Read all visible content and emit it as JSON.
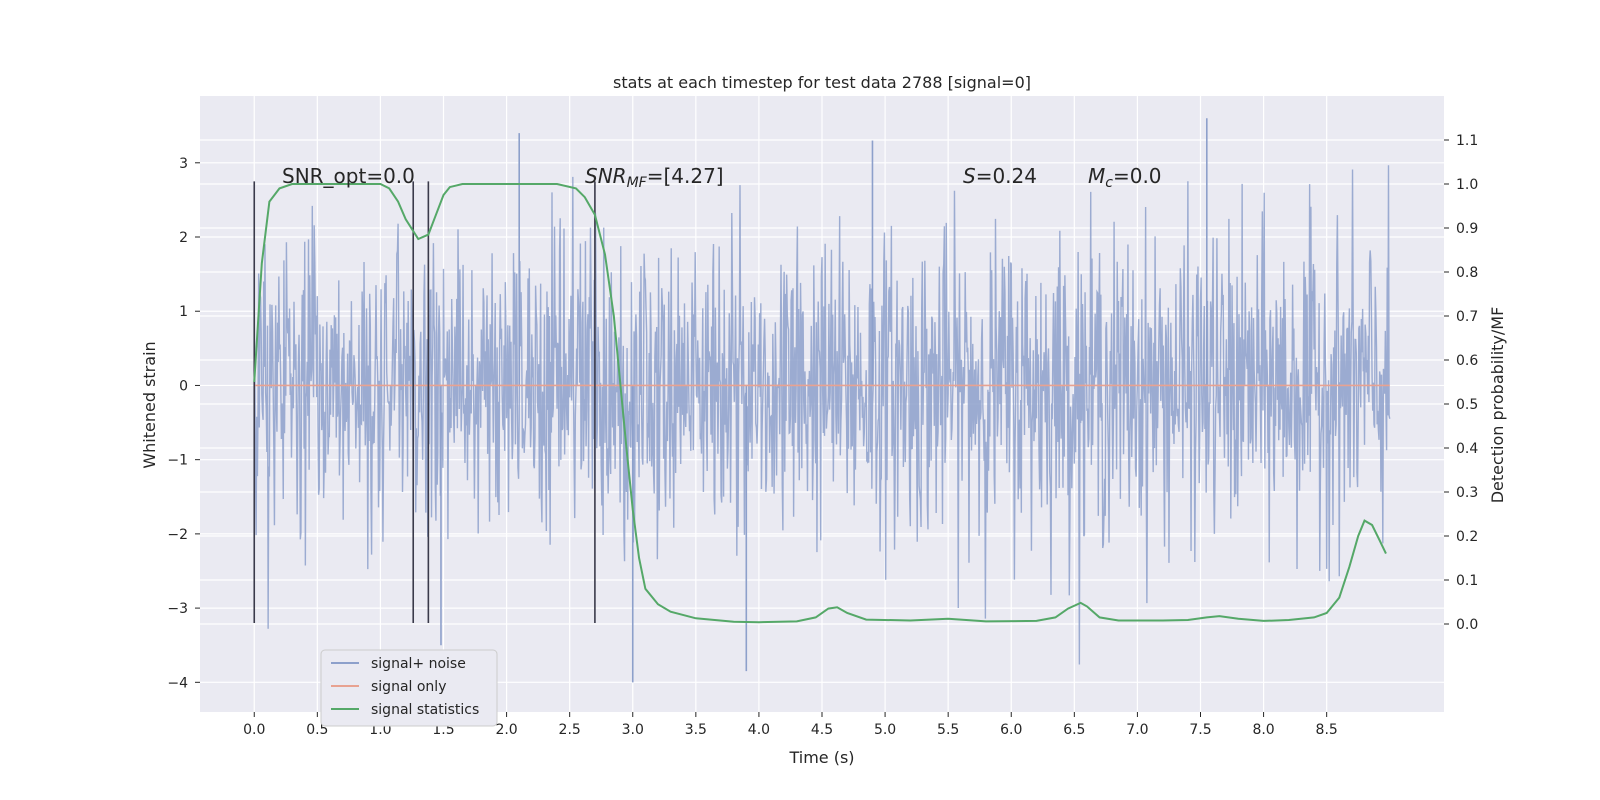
{
  "chart_data": {
    "type": "line",
    "title": "stats at each timestep for test data 2788 [signal=0]",
    "xlabel": "Time (s)",
    "ylabel_left": "Whitened strain",
    "ylabel_right": "Detection probability/MF",
    "xlim": [
      -0.43,
      9.43
    ],
    "ylim_left": [
      -4.4,
      3.9
    ],
    "ylim_right": [
      -0.2,
      1.2
    ],
    "x_ticks": [
      "0.0",
      "0.5",
      "1.0",
      "1.5",
      "2.0",
      "2.5",
      "3.0",
      "3.5",
      "4.0",
      "4.5",
      "5.0",
      "5.5",
      "6.0",
      "6.5",
      "7.0",
      "7.5",
      "8.0",
      "8.5"
    ],
    "y_ticks_left": [
      "3",
      "2",
      "1",
      "0",
      "−1",
      "−2",
      "−3",
      "−4"
    ],
    "y_ticks_right": [
      "1.1",
      "1.0",
      "0.9",
      "0.8",
      "0.7",
      "0.6",
      "0.5",
      "0.4",
      "0.3",
      "0.2",
      "0.1",
      "0.0"
    ],
    "grid": true,
    "legend_placement": "lower-left",
    "series": [
      {
        "name": "signal+ noise",
        "color": "#8da0cb",
        "t_start": 0.0,
        "t_end": 9.0,
        "approx_range": [
          -4.0,
          3.6
        ],
        "notable_peaks": [
          {
            "x": 2.1,
            "y": 3.4
          },
          {
            "x": 7.55,
            "y": 3.6
          },
          {
            "x": 4.9,
            "y": 3.3
          },
          {
            "x": 3.0,
            "y": -4.0
          },
          {
            "x": 3.9,
            "y": -3.85
          },
          {
            "x": 1.48,
            "y": -3.5
          }
        ]
      },
      {
        "name": "signal only",
        "color": "#e8a291",
        "points": [
          [
            0.0,
            0.0
          ],
          [
            9.0,
            0.0
          ]
        ]
      },
      {
        "name": "signal statistics",
        "color": "#55a868",
        "axis": "right",
        "points": [
          [
            0.0,
            0.55
          ],
          [
            0.06,
            0.82
          ],
          [
            0.12,
            0.96
          ],
          [
            0.2,
            0.99
          ],
          [
            0.3,
            1.0
          ],
          [
            0.5,
            1.0
          ],
          [
            0.8,
            1.0
          ],
          [
            1.0,
            1.0
          ],
          [
            1.07,
            0.99
          ],
          [
            1.14,
            0.96
          ],
          [
            1.2,
            0.92
          ],
          [
            1.3,
            0.875
          ],
          [
            1.38,
            0.885
          ],
          [
            1.44,
            0.93
          ],
          [
            1.5,
            0.975
          ],
          [
            1.55,
            0.993
          ],
          [
            1.65,
            1.0
          ],
          [
            2.0,
            1.0
          ],
          [
            2.4,
            1.0
          ],
          [
            2.55,
            0.99
          ],
          [
            2.62,
            0.97
          ],
          [
            2.7,
            0.93
          ],
          [
            2.78,
            0.84
          ],
          [
            2.85,
            0.7
          ],
          [
            2.9,
            0.55
          ],
          [
            2.95,
            0.4
          ],
          [
            3.0,
            0.26
          ],
          [
            3.05,
            0.15
          ],
          [
            3.1,
            0.08
          ],
          [
            3.2,
            0.045
          ],
          [
            3.3,
            0.028
          ],
          [
            3.5,
            0.013
          ],
          [
            3.8,
            0.005
          ],
          [
            4.0,
            0.004
          ],
          [
            4.3,
            0.006
          ],
          [
            4.45,
            0.015
          ],
          [
            4.55,
            0.035
          ],
          [
            4.62,
            0.038
          ],
          [
            4.7,
            0.025
          ],
          [
            4.85,
            0.01
          ],
          [
            5.2,
            0.008
          ],
          [
            5.5,
            0.012
          ],
          [
            5.8,
            0.006
          ],
          [
            6.2,
            0.007
          ],
          [
            6.35,
            0.015
          ],
          [
            6.45,
            0.035
          ],
          [
            6.55,
            0.048
          ],
          [
            6.6,
            0.04
          ],
          [
            6.7,
            0.015
          ],
          [
            6.85,
            0.008
          ],
          [
            7.2,
            0.008
          ],
          [
            7.4,
            0.009
          ],
          [
            7.55,
            0.015
          ],
          [
            7.65,
            0.018
          ],
          [
            7.8,
            0.012
          ],
          [
            8.0,
            0.007
          ],
          [
            8.2,
            0.009
          ],
          [
            8.4,
            0.015
          ],
          [
            8.5,
            0.025
          ],
          [
            8.6,
            0.06
          ],
          [
            8.68,
            0.13
          ],
          [
            8.75,
            0.2
          ],
          [
            8.8,
            0.235
          ],
          [
            8.86,
            0.225
          ],
          [
            8.92,
            0.19
          ],
          [
            8.97,
            0.16
          ]
        ]
      }
    ],
    "vertical_markers": [
      {
        "x": 0.0,
        "y_range": [
          -3.2,
          2.75
        ]
      },
      {
        "x": 1.26,
        "y_range": [
          -3.2,
          2.75
        ]
      },
      {
        "x": 1.38,
        "y_range": [
          -3.2,
          2.75
        ]
      },
      {
        "x": 2.7,
        "y_range": [
          -3.2,
          2.75
        ]
      }
    ],
    "annotations": [
      {
        "id": "snr_opt",
        "text": "SNR_opt=0.0"
      },
      {
        "id": "snr_mf",
        "pre": "SNR",
        "sub": "MF",
        "post": "=[4.27]"
      },
      {
        "id": "s",
        "pre": "S",
        "post": "=0.24"
      },
      {
        "id": "mc",
        "pre": "M",
        "sub": "c",
        "post": "=0.0"
      }
    ]
  }
}
